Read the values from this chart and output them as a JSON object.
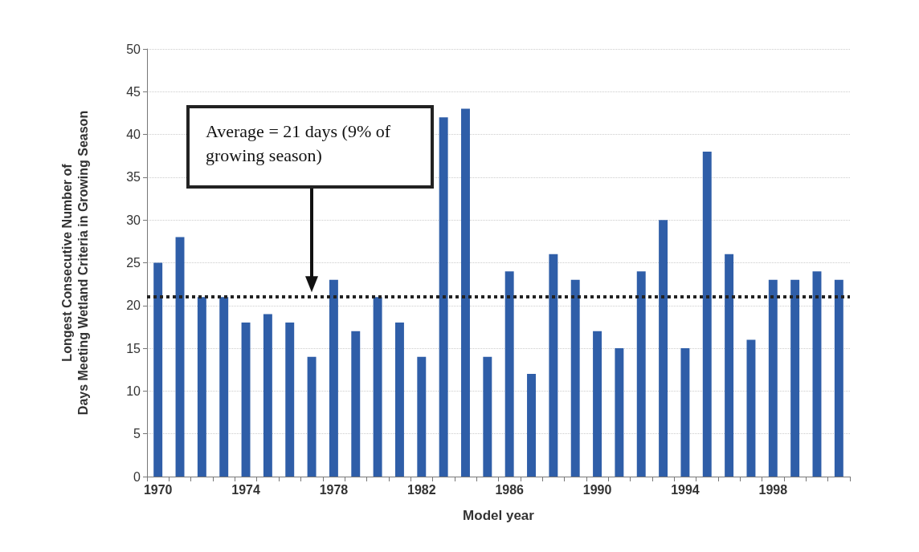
{
  "chart_data": {
    "type": "bar",
    "xlabel": "Model year",
    "ylabel": "Longest Consecutive Number of\nDays Meeting Wetland Criteria in Growing Season",
    "categories": [
      "1970",
      null,
      null,
      null,
      "1974",
      null,
      null,
      null,
      "1978",
      null,
      null,
      null,
      "1982",
      null,
      null,
      null,
      "1986",
      null,
      null,
      null,
      "1990",
      null,
      null,
      null,
      "1994",
      null,
      null,
      null,
      "1998",
      null,
      null,
      null
    ],
    "values": [
      25,
      28,
      21,
      21,
      18,
      19,
      18,
      14,
      23,
      17,
      21,
      18,
      14,
      42,
      43,
      14,
      24,
      12,
      26,
      23,
      17,
      15,
      24,
      30,
      15,
      38,
      26,
      16,
      23,
      23,
      24,
      23
    ],
    "color": "#2f5ea8",
    "ylim": [
      0,
      50
    ],
    "yticks": [
      0,
      5,
      10,
      15,
      20,
      25,
      30,
      35,
      40,
      45,
      50
    ],
    "grid": "y",
    "ref_lines": [
      {
        "axis": "y",
        "value": 21,
        "label": "Average = 21 days (9% of growing season)",
        "color": "#222222",
        "line_style": "dotted"
      }
    ]
  }
}
